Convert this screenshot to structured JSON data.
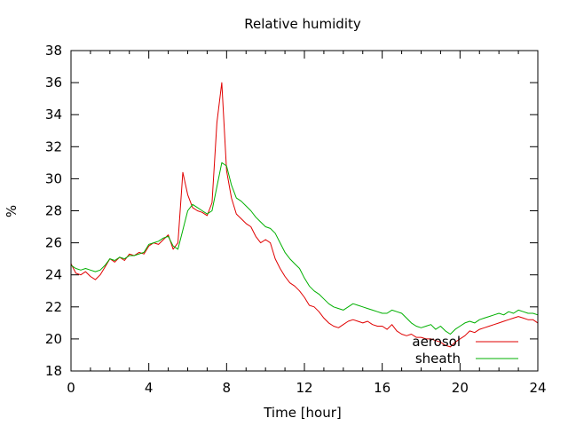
{
  "chart_data": {
    "type": "line",
    "title": "Relative humidity",
    "xlabel": "Time [hour]",
    "ylabel": "%",
    "xlim": [
      0,
      24
    ],
    "ylim": [
      18,
      38
    ],
    "xticks": [
      0,
      4,
      8,
      12,
      16,
      20,
      24
    ],
    "yticks": [
      18,
      20,
      22,
      24,
      26,
      28,
      30,
      32,
      34,
      36,
      38
    ],
    "grid": false,
    "legend_position": "bottom-right",
    "series": [
      {
        "name": "aerosol",
        "color": "#e00000",
        "x": [
          0.0,
          0.25,
          0.5,
          0.75,
          1.0,
          1.25,
          1.5,
          1.75,
          2.0,
          2.25,
          2.5,
          2.75,
          3.0,
          3.25,
          3.5,
          3.75,
          4.0,
          4.25,
          4.5,
          4.75,
          5.0,
          5.25,
          5.5,
          5.75,
          6.0,
          6.25,
          6.5,
          6.75,
          7.0,
          7.25,
          7.5,
          7.75,
          8.0,
          8.25,
          8.5,
          8.75,
          9.0,
          9.25,
          9.5,
          9.75,
          10.0,
          10.25,
          10.5,
          10.75,
          11.0,
          11.25,
          11.5,
          11.75,
          12.0,
          12.25,
          12.5,
          12.75,
          13.0,
          13.25,
          13.5,
          13.75,
          14.0,
          14.25,
          14.5,
          14.75,
          15.0,
          15.25,
          15.5,
          15.75,
          16.0,
          16.25,
          16.5,
          16.75,
          17.0,
          17.25,
          17.5,
          17.75,
          18.0,
          18.25,
          18.5,
          18.75,
          19.0,
          19.25,
          19.5,
          19.75,
          20.0,
          20.25,
          20.5,
          20.75,
          21.0,
          21.25,
          21.5,
          21.75,
          22.0,
          22.25,
          22.5,
          22.75,
          23.0,
          23.25,
          23.5,
          23.75,
          24.0
        ],
        "y": [
          24.7,
          24.1,
          24.0,
          24.2,
          23.9,
          23.7,
          24.0,
          24.5,
          25.0,
          24.8,
          25.1,
          24.9,
          25.3,
          25.2,
          25.4,
          25.3,
          25.8,
          26.0,
          25.9,
          26.2,
          26.5,
          25.6,
          26.0,
          30.4,
          29.0,
          28.2,
          28.0,
          27.9,
          27.7,
          28.5,
          33.5,
          36.0,
          30.5,
          28.8,
          27.8,
          27.5,
          27.2,
          27.0,
          26.4,
          26.0,
          26.2,
          26.0,
          25.0,
          24.4,
          23.9,
          23.5,
          23.3,
          23.0,
          22.6,
          22.1,
          22.0,
          21.7,
          21.3,
          21.0,
          20.8,
          20.7,
          20.9,
          21.1,
          21.2,
          21.1,
          21.0,
          21.1,
          20.9,
          20.8,
          20.8,
          20.6,
          20.9,
          20.5,
          20.3,
          20.2,
          20.3,
          20.1,
          20.1,
          20.0,
          20.0,
          19.9,
          19.8,
          19.6,
          19.5,
          19.8,
          20.0,
          20.2,
          20.5,
          20.4,
          20.6,
          20.7,
          20.8,
          20.9,
          21.0,
          21.1,
          21.2,
          21.3,
          21.4,
          21.3,
          21.2,
          21.2,
          21.0
        ]
      },
      {
        "name": "sheath",
        "color": "#00b000",
        "x": [
          0.0,
          0.25,
          0.5,
          0.75,
          1.0,
          1.25,
          1.5,
          1.75,
          2.0,
          2.25,
          2.5,
          2.75,
          3.0,
          3.25,
          3.5,
          3.75,
          4.0,
          4.25,
          4.5,
          4.75,
          5.0,
          5.25,
          5.5,
          5.75,
          6.0,
          6.25,
          6.5,
          6.75,
          7.0,
          7.25,
          7.5,
          7.75,
          8.0,
          8.25,
          8.5,
          8.75,
          9.0,
          9.25,
          9.5,
          9.75,
          10.0,
          10.25,
          10.5,
          10.75,
          11.0,
          11.25,
          11.5,
          11.75,
          12.0,
          12.25,
          12.5,
          12.75,
          13.0,
          13.25,
          13.5,
          13.75,
          14.0,
          14.25,
          14.5,
          14.75,
          15.0,
          15.25,
          15.5,
          15.75,
          16.0,
          16.25,
          16.5,
          16.75,
          17.0,
          17.25,
          17.5,
          17.75,
          18.0,
          18.25,
          18.5,
          18.75,
          19.0,
          19.25,
          19.5,
          19.75,
          20.0,
          20.25,
          20.5,
          20.75,
          21.0,
          21.25,
          21.5,
          21.75,
          22.0,
          22.25,
          22.5,
          22.75,
          23.0,
          23.25,
          23.5,
          23.75,
          24.0
        ],
        "y": [
          24.6,
          24.4,
          24.3,
          24.4,
          24.3,
          24.2,
          24.3,
          24.6,
          25.0,
          24.9,
          25.1,
          25.0,
          25.2,
          25.2,
          25.3,
          25.4,
          25.9,
          26.0,
          26.1,
          26.3,
          26.4,
          25.8,
          25.6,
          26.8,
          28.0,
          28.4,
          28.2,
          28.0,
          27.8,
          28.0,
          29.5,
          31.0,
          30.8,
          29.6,
          28.8,
          28.6,
          28.3,
          28.0,
          27.6,
          27.3,
          27.0,
          26.9,
          26.6,
          26.0,
          25.4,
          25.0,
          24.7,
          24.4,
          23.8,
          23.3,
          23.0,
          22.8,
          22.5,
          22.2,
          22.0,
          21.9,
          21.8,
          22.0,
          22.2,
          22.1,
          22.0,
          21.9,
          21.8,
          21.7,
          21.6,
          21.6,
          21.8,
          21.7,
          21.6,
          21.3,
          21.0,
          20.8,
          20.7,
          20.8,
          20.9,
          20.6,
          20.8,
          20.5,
          20.3,
          20.6,
          20.8,
          21.0,
          21.1,
          21.0,
          21.2,
          21.3,
          21.4,
          21.5,
          21.6,
          21.5,
          21.7,
          21.6,
          21.8,
          21.7,
          21.6,
          21.6,
          21.5
        ]
      }
    ]
  }
}
